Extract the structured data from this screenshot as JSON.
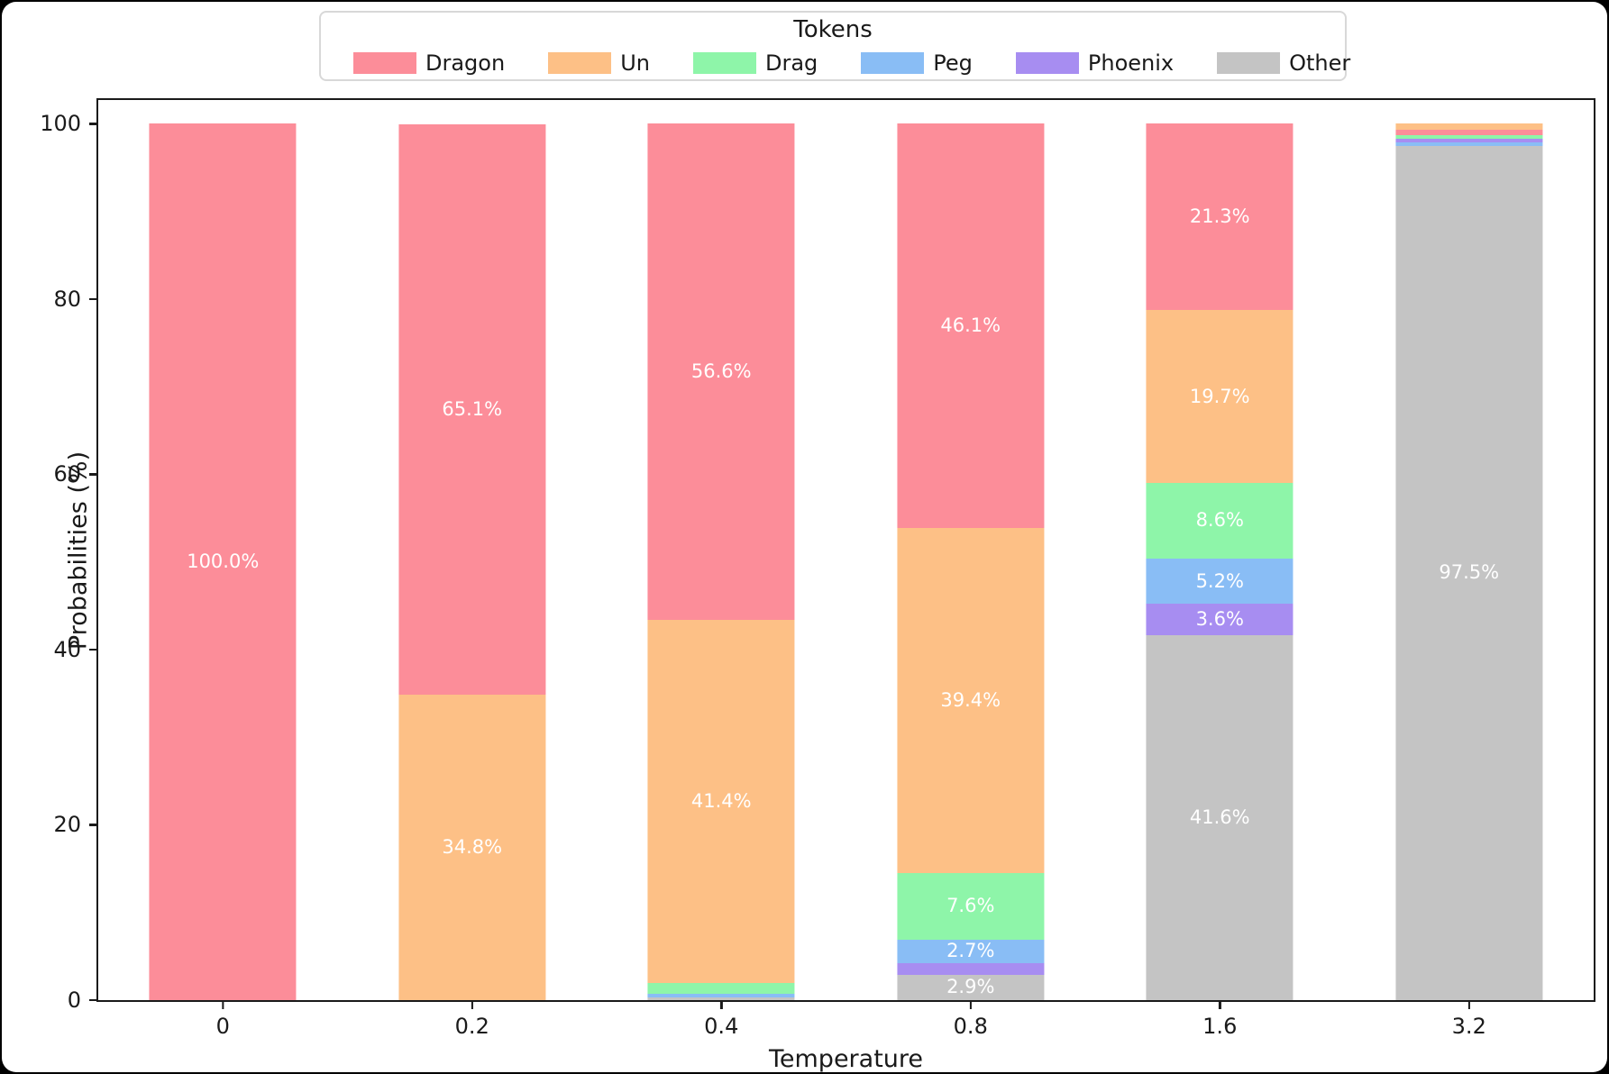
{
  "figure": {
    "background": "#000000",
    "canvas_color": "#ffffff"
  },
  "legend": {
    "title": "Tokens",
    "items": [
      {
        "label": "Dragon",
        "color": "#fc8d99"
      },
      {
        "label": "Un",
        "color": "#fdc086"
      },
      {
        "label": "Drag",
        "color": "#8ef5a9"
      },
      {
        "label": "Peg",
        "color": "#89bdf5"
      },
      {
        "label": "Phoenix",
        "color": "#a78df1"
      },
      {
        "label": "Other",
        "color": "#c4c4c4"
      }
    ]
  },
  "chart_data": {
    "type": "bar",
    "stacked": true,
    "title": "Tokens",
    "xlabel": "Temperature",
    "ylabel": "Probabilities (%)",
    "ylim": [
      0,
      102.7
    ],
    "yticks": [
      0,
      20,
      40,
      60,
      80,
      100
    ],
    "grid": false,
    "legend_position": "top-center",
    "categories": [
      "0",
      "0.2",
      "0.4",
      "0.8",
      "1.6",
      "3.2"
    ],
    "colors": {
      "Dragon": "#fc8d99",
      "Un": "#fdc086",
      "Drag": "#8ef5a9",
      "Peg": "#89bdf5",
      "Phoenix": "#a78df1",
      "Other": "#c4c4c4"
    },
    "segment_order": "top-to-bottom per bar (sorted by probability, Other at bottom)",
    "bars": [
      {
        "category": "0",
        "segments": [
          {
            "name": "Dragon",
            "value": 100.0,
            "label": "100.0%"
          }
        ]
      },
      {
        "category": "0.2",
        "segments": [
          {
            "name": "Dragon",
            "value": 65.1,
            "label": "65.1%"
          },
          {
            "name": "Un",
            "value": 34.8,
            "label": "34.8%"
          }
        ]
      },
      {
        "category": "0.4",
        "segments": [
          {
            "name": "Dragon",
            "value": 56.6,
            "label": "56.6%"
          },
          {
            "name": "Un",
            "value": 41.4,
            "label": "41.4%"
          },
          {
            "name": "Drag",
            "value": 1.3,
            "label": ""
          },
          {
            "name": "Peg",
            "value": 0.4,
            "label": ""
          },
          {
            "name": "Other",
            "value": 0.3,
            "label": ""
          }
        ]
      },
      {
        "category": "0.8",
        "segments": [
          {
            "name": "Dragon",
            "value": 46.1,
            "label": "46.1%"
          },
          {
            "name": "Un",
            "value": 39.4,
            "label": "39.4%"
          },
          {
            "name": "Drag",
            "value": 7.6,
            "label": "7.6%"
          },
          {
            "name": "Peg",
            "value": 2.7,
            "label": "2.7%"
          },
          {
            "name": "Phoenix",
            "value": 1.3,
            "label": ""
          },
          {
            "name": "Other",
            "value": 2.9,
            "label": "2.9%"
          }
        ]
      },
      {
        "category": "1.6",
        "segments": [
          {
            "name": "Dragon",
            "value": 21.3,
            "label": "21.3%"
          },
          {
            "name": "Un",
            "value": 19.7,
            "label": "19.7%"
          },
          {
            "name": "Drag",
            "value": 8.6,
            "label": "8.6%"
          },
          {
            "name": "Peg",
            "value": 5.2,
            "label": "5.2%"
          },
          {
            "name": "Phoenix",
            "value": 3.6,
            "label": "3.6%"
          },
          {
            "name": "Other",
            "value": 41.6,
            "label": "41.6%"
          }
        ]
      },
      {
        "category": "3.2",
        "segments": [
          {
            "name": "Un",
            "value": 0.7,
            "label": ""
          },
          {
            "name": "Dragon",
            "value": 0.6,
            "label": ""
          },
          {
            "name": "Drag",
            "value": 0.45,
            "label": ""
          },
          {
            "name": "Phoenix",
            "value": 0.4,
            "label": ""
          },
          {
            "name": "Peg",
            "value": 0.35,
            "label": ""
          },
          {
            "name": "Other",
            "value": 97.5,
            "label": "97.5%"
          }
        ]
      }
    ]
  }
}
